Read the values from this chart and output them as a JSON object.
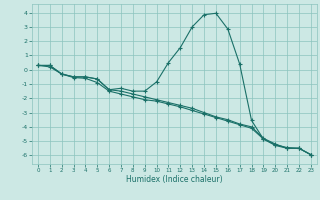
{
  "xlabel": "Humidex (Indice chaleur)",
  "bg_color": "#cce8e4",
  "grid_color": "#8cc4be",
  "line_color": "#1a7068",
  "xlim": [
    -0.5,
    23.5
  ],
  "ylim": [
    -6.6,
    4.6
  ],
  "xticks": [
    0,
    1,
    2,
    3,
    4,
    5,
    6,
    7,
    8,
    9,
    10,
    11,
    12,
    13,
    14,
    15,
    16,
    17,
    18,
    19,
    20,
    21,
    22,
    23
  ],
  "yticks": [
    -6,
    -5,
    -4,
    -3,
    -2,
    -1,
    0,
    1,
    2,
    3,
    4
  ],
  "line1_x": [
    0,
    1,
    2,
    3,
    4,
    5,
    6,
    7,
    8,
    9,
    10,
    11,
    12,
    13,
    14,
    15,
    16,
    17,
    18,
    19,
    20,
    21,
    22,
    23
  ],
  "line1_y": [
    0.3,
    0.3,
    -0.3,
    -0.5,
    -0.5,
    -0.65,
    -1.4,
    -1.3,
    -1.5,
    -1.5,
    -0.85,
    0.5,
    1.55,
    3.0,
    3.85,
    3.95,
    2.85,
    0.4,
    -3.55,
    -4.85,
    -5.25,
    -5.45,
    -5.5,
    -5.95
  ],
  "line2_x": [
    0,
    1,
    2,
    3,
    4,
    5,
    6,
    7,
    8,
    9,
    10,
    11,
    12,
    13,
    14,
    15,
    16,
    17,
    18,
    19,
    20,
    21,
    22,
    23
  ],
  "line2_y": [
    0.3,
    0.3,
    -0.3,
    -0.5,
    -0.5,
    -0.65,
    -1.4,
    -1.5,
    -1.7,
    -1.9,
    -2.1,
    -2.3,
    -2.5,
    -2.7,
    -3.0,
    -3.3,
    -3.5,
    -3.8,
    -4.0,
    -4.8,
    -5.2,
    -5.5,
    -5.5,
    -5.95
  ],
  "line3_x": [
    0,
    1,
    2,
    3,
    4,
    5,
    6,
    7,
    8,
    9,
    10,
    11,
    12,
    13,
    14,
    15,
    16,
    17,
    18,
    19,
    20,
    21,
    22,
    23
  ],
  "line3_y": [
    0.3,
    0.2,
    -0.3,
    -0.55,
    -0.6,
    -0.9,
    -1.5,
    -1.7,
    -1.9,
    -2.1,
    -2.2,
    -2.4,
    -2.6,
    -2.85,
    -3.1,
    -3.35,
    -3.6,
    -3.85,
    -4.1,
    -4.85,
    -5.3,
    -5.5,
    -5.5,
    -5.95
  ]
}
